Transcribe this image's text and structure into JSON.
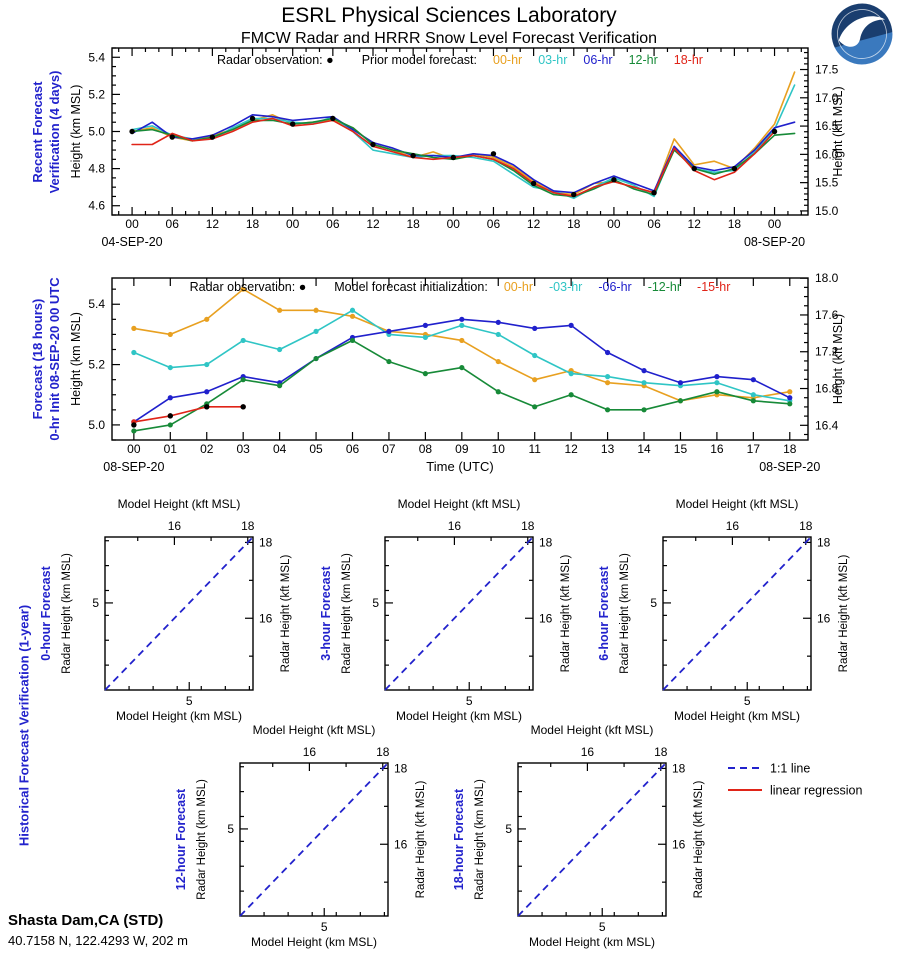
{
  "header": {
    "title": "ESRL Physical Sciences Laboratory",
    "subtitle": "FMCW Radar and HRRR Snow Level Forecast Verification"
  },
  "footer": {
    "station": "Shasta Dam,CA (STD)",
    "coordinates": "40.7158 N, 122.4293 W, 202 m"
  },
  "colors": {
    "panel_label_blue": "#2222CC",
    "obs_black": "#000000",
    "hr00_orange": "#E8A020",
    "hr03_cyan": "#2FC5C5",
    "hr06_blue": "#2020CC",
    "hr12_green": "#178A38",
    "hr18_red": "#E02418",
    "one_to_one_blue": "#2222CC",
    "regression_red": "#E02418"
  },
  "chart_data": [
    {
      "id": "recent-forecast-verification",
      "type": "line",
      "panel_label_line1": "Recent Forecast",
      "panel_label_line2": "Verification (4 days)",
      "legend": {
        "obs_label": "Radar observation:",
        "series_label": "Prior model forecast:",
        "entries": [
          {
            "name": "00-hr",
            "color": "#E8A020"
          },
          {
            "name": "03-hr",
            "color": "#2FC5C5"
          },
          {
            "name": "06-hr",
            "color": "#2020CC"
          },
          {
            "name": "12-hr",
            "color": "#178A38"
          },
          {
            "name": "18-hr",
            "color": "#E02418"
          }
        ]
      },
      "ylabel_left": "Height (km MSL)",
      "ylabel_right": "Height (kft MSL)",
      "date_left": "04-SEP-20",
      "date_right": "08-SEP-20",
      "date_left_h": 0,
      "date_right_h": 96,
      "xlim": [
        -3,
        101
      ],
      "ylim_km": [
        4.55,
        5.45
      ],
      "yticks_km": [
        4.6,
        4.8,
        5.0,
        5.2,
        5.4
      ],
      "yticks_kft": [
        15.0,
        15.5,
        16.0,
        16.5,
        17.0,
        17.5
      ],
      "xticks": [
        {
          "h": 0,
          "label": "00"
        },
        {
          "h": 6,
          "label": "06"
        },
        {
          "h": 12,
          "label": "12"
        },
        {
          "h": 18,
          "label": "18"
        },
        {
          "h": 24,
          "label": "00"
        },
        {
          "h": 30,
          "label": "06"
        },
        {
          "h": 36,
          "label": "12"
        },
        {
          "h": 42,
          "label": "18"
        },
        {
          "h": 48,
          "label": "00"
        },
        {
          "h": 54,
          "label": "06"
        },
        {
          "h": 60,
          "label": "12"
        },
        {
          "h": 66,
          "label": "18"
        },
        {
          "h": 72,
          "label": "00"
        },
        {
          "h": 78,
          "label": "06"
        },
        {
          "h": 84,
          "label": "12"
        },
        {
          "h": 90,
          "label": "18"
        },
        {
          "h": 96,
          "label": "00"
        }
      ],
      "markers": false,
      "x": [
        0,
        3,
        6,
        9,
        12,
        15,
        18,
        21,
        24,
        27,
        30,
        33,
        36,
        39,
        42,
        45,
        48,
        51,
        54,
        57,
        60,
        63,
        66,
        69,
        72,
        75,
        78,
        81,
        84,
        87,
        90,
        93,
        96,
        99
      ],
      "series": [
        {
          "name": "00-hr",
          "color": "#E8A020",
          "values": [
            5.0,
            5.02,
            4.97,
            4.95,
            4.98,
            5.01,
            5.06,
            5.09,
            5.04,
            5.05,
            5.06,
            5.02,
            4.93,
            4.9,
            4.86,
            4.89,
            4.85,
            4.88,
            4.86,
            4.81,
            4.73,
            4.67,
            4.66,
            4.72,
            4.73,
            4.7,
            4.67,
            4.96,
            4.82,
            4.84,
            4.8,
            4.91,
            5.04,
            5.32
          ]
        },
        {
          "name": "03-hr",
          "color": "#2FC5C5",
          "values": [
            5.01,
            5.03,
            4.98,
            4.96,
            4.96,
            5.02,
            5.07,
            5.07,
            5.05,
            5.04,
            5.08,
            5.0,
            4.9,
            4.88,
            4.86,
            4.87,
            4.87,
            4.86,
            4.84,
            4.77,
            4.7,
            4.68,
            4.64,
            4.7,
            4.75,
            4.71,
            4.65,
            4.91,
            4.8,
            4.78,
            4.79,
            4.89,
            5.01,
            5.25
          ]
        },
        {
          "name": "06-hr",
          "color": "#2020CC",
          "values": [
            4.99,
            5.05,
            4.97,
            4.96,
            4.98,
            5.03,
            5.09,
            5.08,
            5.06,
            5.07,
            5.08,
            5.01,
            4.94,
            4.91,
            4.87,
            4.87,
            4.86,
            4.88,
            4.87,
            4.82,
            4.74,
            4.68,
            4.67,
            4.72,
            4.76,
            4.72,
            4.68,
            4.92,
            4.81,
            4.79,
            4.81,
            4.9,
            5.02,
            5.05
          ]
        },
        {
          "name": "12-hr",
          "color": "#178A38",
          "values": [
            5.0,
            5.01,
            4.98,
            4.95,
            4.97,
            5.01,
            5.06,
            5.06,
            5.04,
            5.05,
            5.07,
            5.02,
            4.93,
            4.9,
            4.88,
            4.86,
            4.85,
            4.87,
            4.85,
            4.79,
            4.71,
            4.66,
            4.65,
            4.69,
            4.74,
            4.69,
            4.66,
            4.9,
            4.8,
            4.77,
            4.8,
            4.88,
            4.98,
            4.99
          ]
        },
        {
          "name": "18-hr",
          "color": "#E02418",
          "values": [
            4.93,
            4.93,
            4.99,
            4.95,
            4.96,
            5.0,
            5.05,
            5.07,
            5.03,
            5.04,
            5.06,
            5.0,
            4.92,
            4.89,
            4.86,
            4.85,
            4.86,
            4.87,
            4.85,
            4.8,
            4.72,
            4.67,
            4.65,
            4.7,
            4.73,
            4.7,
            4.67,
            4.91,
            4.79,
            4.74,
            4.78,
            4.88,
            5.0
          ]
        }
      ],
      "radar_obs": {
        "x": [
          0,
          6,
          12,
          18,
          24,
          30,
          36,
          42,
          48,
          54,
          60,
          66,
          72,
          78,
          84,
          90,
          96
        ],
        "y": [
          5.0,
          4.97,
          4.97,
          5.07,
          5.04,
          5.07,
          4.93,
          4.87,
          4.86,
          4.88,
          4.72,
          4.66,
          4.74,
          4.67,
          4.8,
          4.8,
          5.0
        ]
      }
    },
    {
      "id": "forecast-18-hours",
      "type": "line",
      "panel_label_line1": "Forecast (18 hours)",
      "panel_label_line2": "0-hr Init 08-SEP-20 00 UTC",
      "legend": {
        "obs_label": "Radar observation:",
        "series_label": "Model forecast initialization:",
        "entries": [
          {
            "name": "00-hr",
            "color": "#E8A020"
          },
          {
            "name": "-03-hr",
            "color": "#2FC5C5"
          },
          {
            "name": "-06-hr",
            "color": "#2020CC"
          },
          {
            "name": "-12-hr",
            "color": "#178A38"
          },
          {
            "name": "-15-hr",
            "color": "#E02418"
          }
        ]
      },
      "xlabel": "Time (UTC)",
      "ylabel_left": "Height (km MSL)",
      "ylabel_right": "Height (kft MSL)",
      "date_left": "08-SEP-20",
      "date_right": "08-SEP-20",
      "date_left_h": 0,
      "date_right_h": 18,
      "xlim": [
        -0.6,
        18.5
      ],
      "ylim_km": [
        4.95,
        5.487
      ],
      "yticks_km": [
        5.0,
        5.2,
        5.4
      ],
      "yticks_kft": [
        16.4,
        16.8,
        17.2,
        17.6,
        18.0
      ],
      "xticks": [
        {
          "h": 0,
          "label": "00"
        },
        {
          "h": 1,
          "label": "01"
        },
        {
          "h": 2,
          "label": "02"
        },
        {
          "h": 3,
          "label": "03"
        },
        {
          "h": 4,
          "label": "04"
        },
        {
          "h": 5,
          "label": "05"
        },
        {
          "h": 6,
          "label": "06"
        },
        {
          "h": 7,
          "label": "07"
        },
        {
          "h": 8,
          "label": "08"
        },
        {
          "h": 9,
          "label": "09"
        },
        {
          "h": 10,
          "label": "10"
        },
        {
          "h": 11,
          "label": "11"
        },
        {
          "h": 12,
          "label": "12"
        },
        {
          "h": 13,
          "label": "13"
        },
        {
          "h": 14,
          "label": "14"
        },
        {
          "h": 15,
          "label": "15"
        },
        {
          "h": 16,
          "label": "16"
        },
        {
          "h": 17,
          "label": "17"
        },
        {
          "h": 18,
          "label": "18"
        }
      ],
      "markers": true,
      "x": [
        0,
        1,
        2,
        3,
        4,
        5,
        6,
        7,
        8,
        9,
        10,
        11,
        12,
        13,
        14,
        15,
        16,
        17,
        18
      ],
      "series": [
        {
          "name": "00-hr",
          "color": "#E8A020",
          "values": [
            5.32,
            5.3,
            5.35,
            5.45,
            5.38,
            5.38,
            5.36,
            5.31,
            5.3,
            5.28,
            5.21,
            5.15,
            5.18,
            5.14,
            5.13,
            5.08,
            5.1,
            5.09,
            5.11
          ]
        },
        {
          "name": "-03-hr",
          "color": "#2FC5C5",
          "values": [
            5.24,
            5.19,
            5.2,
            5.28,
            5.25,
            5.31,
            5.38,
            5.3,
            5.29,
            5.33,
            5.3,
            5.23,
            5.17,
            5.16,
            5.14,
            5.13,
            5.14,
            5.1,
            5.08
          ]
        },
        {
          "name": "-06-hr",
          "color": "#2020CC",
          "values": [
            5.01,
            5.09,
            5.11,
            5.16,
            5.14,
            5.22,
            5.29,
            5.31,
            5.33,
            5.35,
            5.34,
            5.32,
            5.33,
            5.24,
            5.18,
            5.14,
            5.16,
            5.15,
            5.09
          ]
        },
        {
          "name": "-12-hr",
          "color": "#178A38",
          "values": [
            4.98,
            5.0,
            5.07,
            5.15,
            5.13,
            5.22,
            5.28,
            5.21,
            5.17,
            5.19,
            5.11,
            5.06,
            5.1,
            5.05,
            5.05,
            5.08,
            5.11,
            5.08,
            5.07
          ]
        },
        {
          "name": "-15-hr",
          "color": "#E02418",
          "values": [
            5.01,
            5.03,
            5.06,
            5.06
          ]
        }
      ],
      "radar_obs": {
        "x": [
          0,
          1,
          2,
          3
        ],
        "y": [
          5.0,
          5.03,
          5.06,
          5.06
        ]
      }
    },
    {
      "id": "historical-verification",
      "type": "scatter",
      "section_label": "Historical Forecast Verification (1-year)",
      "axes": {
        "top_label": "Model Height (kft MSL)",
        "bottom_label": "Model Height (km MSL)",
        "left_label": "Radar Height (km MSL)",
        "right_label": "Radar Height (kft MSL)",
        "km_range": [
          4.3,
          5.53
        ],
        "km_tick_major": [
          5
        ],
        "km_tick_minor": [
          4.5,
          4.7,
          4.9,
          5.1,
          5.3,
          5.5
        ],
        "kft_tick_major": [
          16,
          18
        ],
        "kft_tick_minor": [
          15,
          17
        ]
      },
      "plots": [
        {
          "label": "0-hour Forecast",
          "points": []
        },
        {
          "label": "3-hour Forecast",
          "points": []
        },
        {
          "label": "6-hour Forecast",
          "points": []
        },
        {
          "label": "12-hour Forecast",
          "points": []
        },
        {
          "label": "18-hour Forecast",
          "points": []
        }
      ],
      "one_to_one": true,
      "legend": {
        "items": [
          {
            "label": "1:1 line",
            "color": "#2222CC",
            "style": "dashed"
          },
          {
            "label": "linear regression",
            "color": "#E02418",
            "style": "solid"
          }
        ]
      }
    }
  ]
}
